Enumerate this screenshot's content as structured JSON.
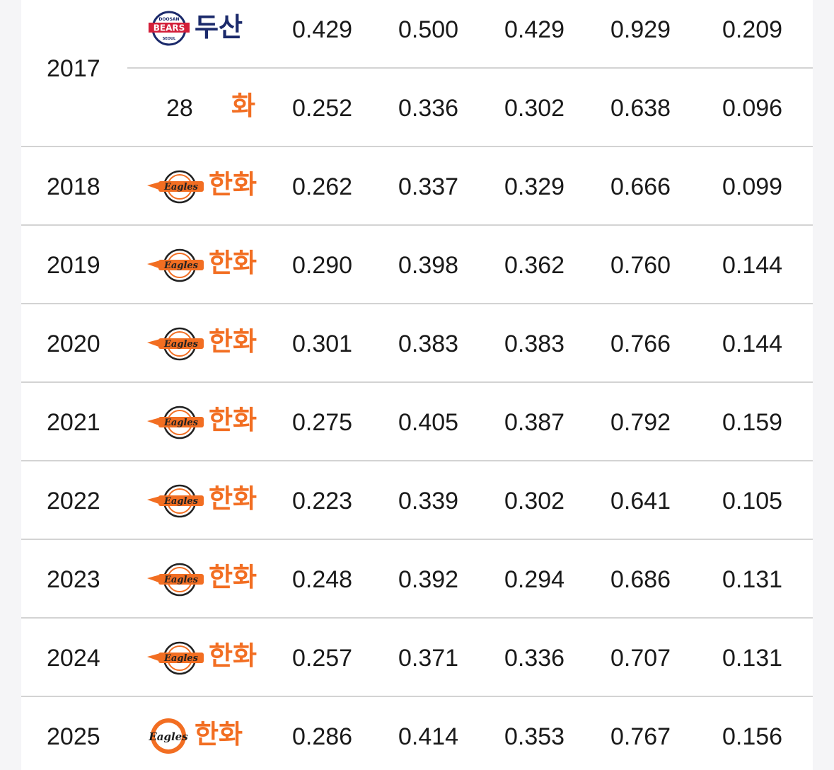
{
  "colors": {
    "doosan_navy": "#1b2a6b",
    "doosan_red": "#d31f3a",
    "hanwha_orange": "#f26e22",
    "divider": "#d3d3d3",
    "text": "#1a1a1a"
  },
  "rows": [
    {
      "year": "2017",
      "team": "두산",
      "logo": "doosan-bears-logo-icon",
      "values": [
        "0.429",
        "0.500",
        "0.429",
        "0.929",
        "0.209"
      ]
    },
    {
      "year": "",
      "prefix": "28",
      "team": "화",
      "logo": "",
      "values": [
        "0.252",
        "0.336",
        "0.302",
        "0.638",
        "0.096"
      ]
    },
    {
      "year": "2018",
      "team": "한화",
      "logo": "hanwha-eagles-logo-icon",
      "values": [
        "0.262",
        "0.337",
        "0.329",
        "0.666",
        "0.099"
      ]
    },
    {
      "year": "2019",
      "team": "한화",
      "logo": "hanwha-eagles-logo-icon",
      "values": [
        "0.290",
        "0.398",
        "0.362",
        "0.760",
        "0.144"
      ]
    },
    {
      "year": "2020",
      "team": "한화",
      "logo": "hanwha-eagles-logo-icon",
      "values": [
        "0.301",
        "0.383",
        "0.383",
        "0.766",
        "0.144"
      ]
    },
    {
      "year": "2021",
      "team": "한화",
      "logo": "hanwha-eagles-logo-icon",
      "values": [
        "0.275",
        "0.405",
        "0.387",
        "0.792",
        "0.159"
      ]
    },
    {
      "year": "2022",
      "team": "한화",
      "logo": "hanwha-eagles-logo-icon",
      "values": [
        "0.223",
        "0.339",
        "0.302",
        "0.641",
        "0.105"
      ]
    },
    {
      "year": "2023",
      "team": "한화",
      "logo": "hanwha-eagles-logo-icon",
      "values": [
        "0.248",
        "0.392",
        "0.294",
        "0.686",
        "0.131"
      ]
    },
    {
      "year": "2024",
      "team": "한화",
      "logo": "hanwha-eagles-logo-icon",
      "values": [
        "0.257",
        "0.371",
        "0.336",
        "0.707",
        "0.131"
      ]
    },
    {
      "year": "2025",
      "team": "한화",
      "logo": "hanwha-eagles-new-logo-icon",
      "values": [
        "0.286",
        "0.414",
        "0.353",
        "0.767",
        "0.156"
      ]
    }
  ],
  "logo_text": {
    "doosan_top": "DOOSAN",
    "doosan_main": "BEARS",
    "doosan_bottom": "SEOUL",
    "hanwha": "Eagles"
  }
}
